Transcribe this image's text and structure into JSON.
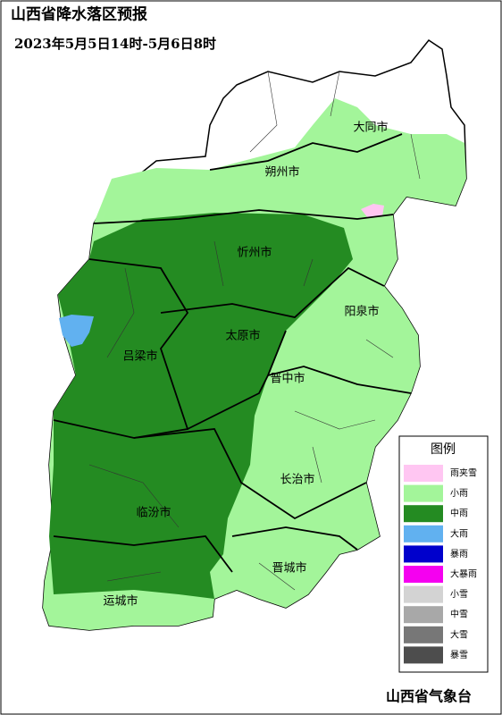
{
  "title": "山西省降水落区预报",
  "subtitle": "2023年5月5日14时-5月6日8时",
  "cities": [
    "大同市",
    "朔州市",
    "忻州市",
    "阳泉市",
    "太原市",
    "吕梁市",
    "晋中市",
    "长治市",
    "临汾市",
    "晋城市",
    "运城市"
  ],
  "legend": {
    "title": "图例",
    "items": [
      {
        "label": "雨夹雪",
        "color": "#ffc6f2"
      },
      {
        "label": "小雨",
        "color": "#a3f59a"
      },
      {
        "label": "中雨",
        "color": "#248b22"
      },
      {
        "label": "大雨",
        "color": "#61b1f0"
      },
      {
        "label": "暴雨",
        "color": "#0000cc"
      },
      {
        "label": "大暴雨",
        "color": "#f500f0"
      },
      {
        "label": "小雪",
        "color": "#d3d3d3"
      },
      {
        "label": "中雪",
        "color": "#a8a8a8"
      },
      {
        "label": "大雪",
        "color": "#777777"
      },
      {
        "label": "暴雪",
        "color": "#4d4d4d"
      }
    ]
  },
  "footer": "山西省气象台"
}
